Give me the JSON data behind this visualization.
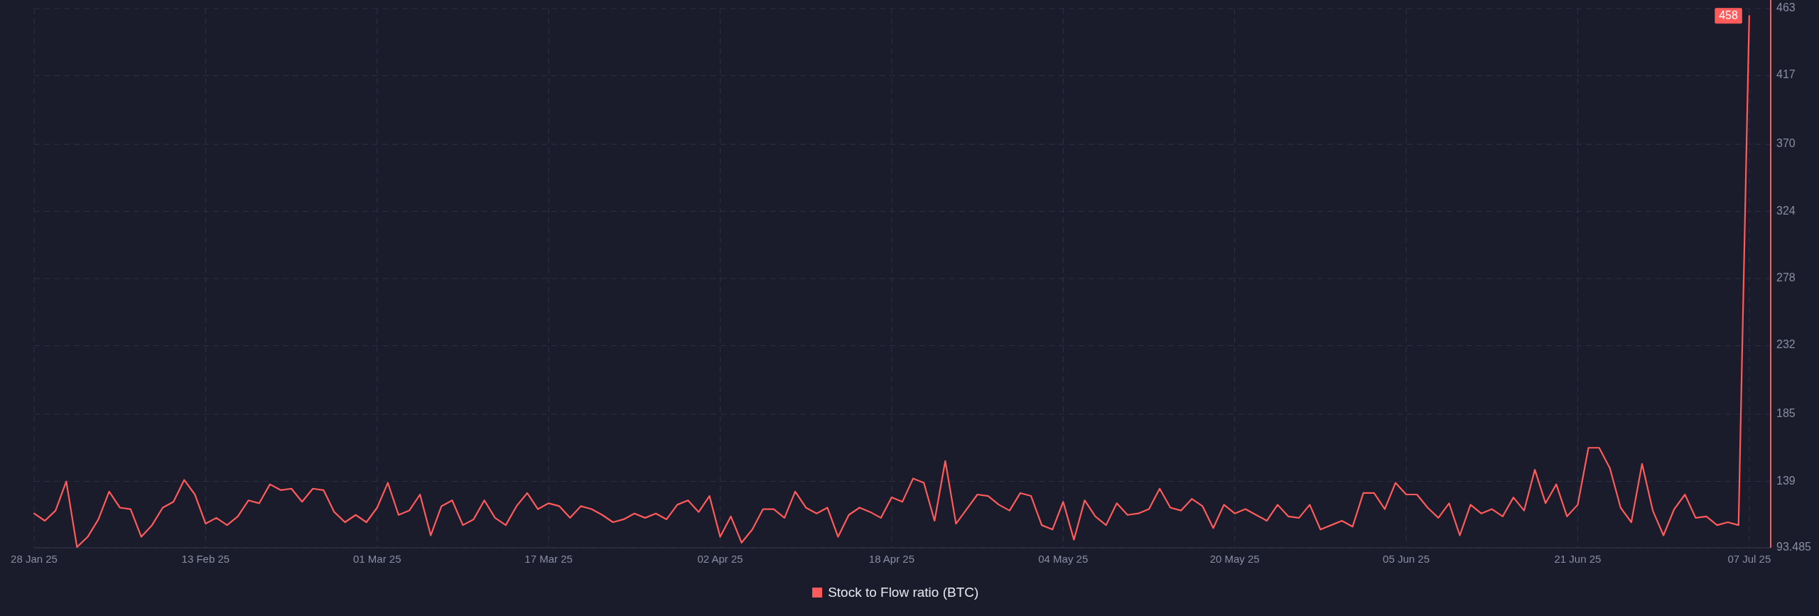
{
  "chart_data": {
    "type": "line",
    "x": [
      "2025-01-28",
      "2025-01-29",
      "2025-01-30",
      "2025-01-31",
      "2025-02-01",
      "2025-02-02",
      "2025-02-03",
      "2025-02-04",
      "2025-02-05",
      "2025-02-06",
      "2025-02-07",
      "2025-02-08",
      "2025-02-09",
      "2025-02-10",
      "2025-02-11",
      "2025-02-12",
      "2025-02-13",
      "2025-02-14",
      "2025-02-15",
      "2025-02-16",
      "2025-02-17",
      "2025-02-18",
      "2025-02-19",
      "2025-02-20",
      "2025-02-21",
      "2025-02-22",
      "2025-02-23",
      "2025-02-24",
      "2025-02-25",
      "2025-02-26",
      "2025-02-27",
      "2025-02-28",
      "2025-03-01",
      "2025-03-02",
      "2025-03-03",
      "2025-03-04",
      "2025-03-05",
      "2025-03-06",
      "2025-03-07",
      "2025-03-08",
      "2025-03-09",
      "2025-03-10",
      "2025-03-11",
      "2025-03-12",
      "2025-03-13",
      "2025-03-14",
      "2025-03-15",
      "2025-03-16",
      "2025-03-17",
      "2025-03-18",
      "2025-03-19",
      "2025-03-20",
      "2025-03-21",
      "2025-03-22",
      "2025-03-23",
      "2025-03-24",
      "2025-03-25",
      "2025-03-26",
      "2025-03-27",
      "2025-03-28",
      "2025-03-29",
      "2025-03-30",
      "2025-03-31",
      "2025-04-01",
      "2025-04-02",
      "2025-04-03",
      "2025-04-04",
      "2025-04-05",
      "2025-04-06",
      "2025-04-07",
      "2025-04-08",
      "2025-04-09",
      "2025-04-10",
      "2025-04-11",
      "2025-04-12",
      "2025-04-13",
      "2025-04-14",
      "2025-04-15",
      "2025-04-16",
      "2025-04-17",
      "2025-04-18",
      "2025-04-19",
      "2025-04-20",
      "2025-04-21",
      "2025-04-22",
      "2025-04-23",
      "2025-04-24",
      "2025-04-25",
      "2025-04-26",
      "2025-04-27",
      "2025-04-28",
      "2025-04-29",
      "2025-04-30",
      "2025-05-01",
      "2025-05-02",
      "2025-05-03",
      "2025-05-04",
      "2025-05-05",
      "2025-05-06",
      "2025-05-07",
      "2025-05-08",
      "2025-05-09",
      "2025-05-10",
      "2025-05-11",
      "2025-05-12",
      "2025-05-13",
      "2025-05-14",
      "2025-05-15",
      "2025-05-16",
      "2025-05-17",
      "2025-05-18",
      "2025-05-19",
      "2025-05-20",
      "2025-05-21",
      "2025-05-22",
      "2025-05-23",
      "2025-05-24",
      "2025-05-25",
      "2025-05-26",
      "2025-05-27",
      "2025-05-28",
      "2025-05-29",
      "2025-05-30",
      "2025-05-31",
      "2025-06-01",
      "2025-06-02",
      "2025-06-03",
      "2025-06-04",
      "2025-06-05",
      "2025-06-06",
      "2025-06-07",
      "2025-06-08",
      "2025-06-09",
      "2025-06-10",
      "2025-06-11",
      "2025-06-12",
      "2025-06-13",
      "2025-06-14",
      "2025-06-15",
      "2025-06-16",
      "2025-06-17",
      "2025-06-18",
      "2025-06-19",
      "2025-06-20",
      "2025-06-21",
      "2025-06-22",
      "2025-06-23",
      "2025-06-24",
      "2025-06-25",
      "2025-06-26",
      "2025-06-27",
      "2025-06-28",
      "2025-06-29",
      "2025-06-30",
      "2025-07-01",
      "2025-07-02",
      "2025-07-03",
      "2025-07-04",
      "2025-07-05",
      "2025-07-06",
      "2025-07-07"
    ],
    "series": [
      {
        "name": "Stock to Flow ratio (BTC)",
        "color": "#ff5b5b",
        "values": [
          117,
          112,
          119,
          139,
          94,
          101,
          113,
          132,
          121,
          120,
          101,
          109,
          121,
          125,
          140,
          130,
          110,
          114,
          109,
          115,
          126,
          124,
          137,
          133,
          134,
          125,
          134,
          133,
          118,
          111,
          116,
          111,
          121,
          138,
          116,
          119,
          130,
          102,
          122,
          126,
          109,
          113,
          126,
          114,
          109,
          122,
          131,
          120,
          124,
          122,
          114,
          122,
          120,
          116,
          111,
          113,
          117,
          114,
          117,
          113,
          123,
          126,
          118,
          129,
          101,
          115,
          97,
          106,
          120,
          120,
          114,
          132,
          121,
          117,
          121,
          101,
          116,
          121,
          118,
          114,
          128,
          125,
          141,
          138,
          112,
          153,
          110,
          120,
          130,
          129,
          123,
          119,
          131,
          129,
          109,
          106,
          125,
          99,
          126,
          115,
          109,
          124,
          116,
          117,
          120,
          134,
          121,
          119,
          127,
          122,
          107,
          123,
          117,
          120,
          116,
          112,
          123,
          115,
          114,
          123,
          106,
          109,
          112,
          108,
          131,
          131,
          120,
          138,
          130,
          130,
          121,
          114,
          124,
          102,
          123,
          117,
          120,
          115,
          128,
          119,
          147,
          124,
          137,
          115,
          123,
          162,
          162,
          148,
          121,
          111,
          151,
          119,
          102,
          120,
          130,
          114,
          115,
          109,
          111,
          109,
          458
        ]
      }
    ],
    "xlim": [
      "2025-01-28",
      "2025-07-09"
    ],
    "xticks": [
      {
        "value": "2025-01-28",
        "label": "28 Jan 25"
      },
      {
        "value": "2025-02-13",
        "label": "13 Feb 25"
      },
      {
        "value": "2025-03-01",
        "label": "01 Mar 25"
      },
      {
        "value": "2025-03-17",
        "label": "17 Mar 25"
      },
      {
        "value": "2025-04-02",
        "label": "02 Apr 25"
      },
      {
        "value": "2025-04-18",
        "label": "18 Apr 25"
      },
      {
        "value": "2025-05-04",
        "label": "04 May 25"
      },
      {
        "value": "2025-05-20",
        "label": "20 May 25"
      },
      {
        "value": "2025-06-05",
        "label": "05 Jun 25"
      },
      {
        "value": "2025-06-21",
        "label": "21 Jun 25"
      },
      {
        "value": "2025-07-07",
        "label": "07 Jul 25"
      }
    ],
    "ylim": [
      93.485,
      463
    ],
    "yticks": [
      93.485,
      139,
      185,
      232,
      278,
      324,
      370,
      417,
      463
    ],
    "grid": true,
    "legend": "bottom",
    "annotations": [
      {
        "text": "458",
        "x": "2025-07-07",
        "y": 458
      }
    ]
  }
}
